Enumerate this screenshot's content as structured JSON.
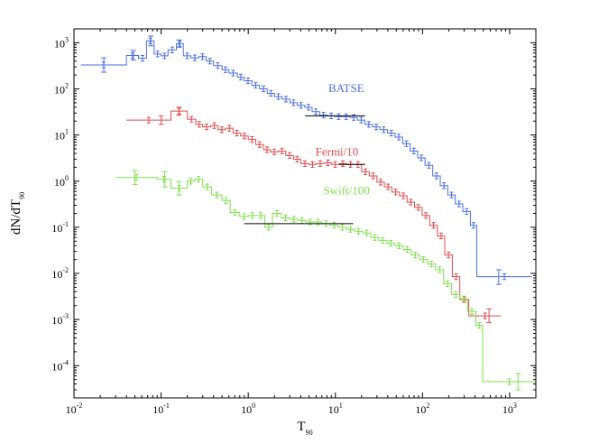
{
  "chart_data": {
    "type": "line",
    "xlabel": "T",
    "xlabel_sub": "90",
    "ylabel": "dN/dT",
    "ylabel_sub": "90",
    "x_scale": "log",
    "y_scale": "log",
    "xlim": [
      0.01,
      2000
    ],
    "ylim": [
      2e-05,
      2000
    ],
    "x_ticks": [
      {
        "base": "10",
        "exp": "-2",
        "value": 0.01
      },
      {
        "base": "10",
        "exp": "-1",
        "value": 0.1
      },
      {
        "base": "10",
        "exp": "0",
        "value": 1
      },
      {
        "base": "10",
        "exp": "1",
        "value": 10
      },
      {
        "base": "10",
        "exp": "2",
        "value": 100
      },
      {
        "base": "10",
        "exp": "3",
        "value": 1000
      }
    ],
    "y_ticks": [
      {
        "base": "10",
        "exp": "3",
        "value": 1000
      },
      {
        "base": "10",
        "exp": "2",
        "value": 100
      },
      {
        "base": "10",
        "exp": "1",
        "value": 10
      },
      {
        "base": "10",
        "exp": "0",
        "value": 1
      },
      {
        "base": "10",
        "exp": "-1",
        "value": 0.1
      },
      {
        "base": "10",
        "exp": "-2",
        "value": 0.01
      },
      {
        "base": "10",
        "exp": "-3",
        "value": 0.001
      },
      {
        "base": "10",
        "exp": "-4",
        "value": 0.0001
      }
    ],
    "grid": false,
    "series": [
      {
        "name": "BATSE",
        "color": "#4a6ee0",
        "label_position": {
          "x": 8.3,
          "y": 85
        },
        "edges": [
          0.012,
          0.04,
          0.055,
          0.068,
          0.083,
          0.1,
          0.12,
          0.15,
          0.18,
          0.22,
          0.27,
          0.33,
          0.4,
          0.5,
          0.6,
          0.75,
          0.9,
          1.1,
          1.35,
          1.65,
          2.0,
          2.45,
          3.0,
          3.65,
          4.45,
          5.4,
          6.6,
          8.1,
          9.9,
          12.0,
          14.7,
          17.9,
          21.9,
          26.7,
          32.5,
          39.7,
          48.4,
          59.1,
          72.0,
          87.9,
          107,
          131,
          160,
          195,
          238,
          290,
          354,
          420,
          1800
        ],
        "values": [
          330,
          530,
          460,
          1100,
          570,
          520,
          700,
          960,
          520,
          470,
          500,
          400,
          320,
          260,
          220,
          180,
          150,
          120,
          100,
          80,
          68,
          60,
          50,
          44,
          40,
          32,
          27,
          26,
          25,
          25,
          24,
          21,
          17,
          15,
          13,
          11,
          9,
          6.5,
          4.5,
          3.2,
          2.2,
          1.3,
          0.8,
          0.5,
          0.32,
          0.22,
          0.11,
          0.0085
        ],
        "error_points": [
          {
            "x": 0.022,
            "y": 330,
            "lo": 230,
            "hi": 470
          },
          {
            "x": 0.048,
            "y": 530,
            "lo": 420,
            "hi": 680
          },
          {
            "x": 0.076,
            "y": 1100,
            "lo": 860,
            "hi": 1400
          },
          {
            "x": 0.16,
            "y": 960,
            "lo": 800,
            "hi": 1150
          },
          {
            "x": 750,
            "y": 0.0085,
            "lo": 0.0058,
            "hi": 0.012
          }
        ]
      },
      {
        "name": "Fermi/10",
        "color": "#e04a4a",
        "label_position": {
          "x": 5.9,
          "y": 3.6
        },
        "edges": [
          0.04,
          0.13,
          0.2,
          0.25,
          0.3,
          0.37,
          0.45,
          0.55,
          0.67,
          0.82,
          1.0,
          1.22,
          1.5,
          1.8,
          2.2,
          2.7,
          3.3,
          4.0,
          5.0,
          6.0,
          7.5,
          9.0,
          11.0,
          13.5,
          16.5,
          20,
          24.5,
          30,
          36.5,
          44.5,
          54.5,
          66.5,
          81,
          99,
          121,
          148,
          180,
          220,
          268,
          340,
          800
        ],
        "values": [
          21,
          33,
          22,
          17,
          15,
          16,
          13,
          14,
          11,
          9.5,
          8,
          6.2,
          4.8,
          4.3,
          4.5,
          3.6,
          3.0,
          2.4,
          2.3,
          2.4,
          2.5,
          2.3,
          2.4,
          2.3,
          2.3,
          1.6,
          1.3,
          0.95,
          0.75,
          0.58,
          0.48,
          0.35,
          0.27,
          0.18,
          0.11,
          0.065,
          0.025,
          0.0085,
          0.0027,
          0.0012
        ],
        "error_points": [
          {
            "x": 0.1,
            "y": 21,
            "lo": 17,
            "hi": 26
          },
          {
            "x": 0.16,
            "y": 33,
            "lo": 27,
            "hi": 40
          },
          {
            "x": 580,
            "y": 0.0012,
            "lo": 0.00085,
            "hi": 0.0017
          }
        ]
      },
      {
        "name": "Swift/100",
        "color": "#7ee04a",
        "label_position": {
          "x": 7.3,
          "y": 0.52
        },
        "edges": [
          0.03,
          0.09,
          0.13,
          0.2,
          0.24,
          0.3,
          0.38,
          0.5,
          0.62,
          0.8,
          1.0,
          1.25,
          1.55,
          1.9,
          2.4,
          3.0,
          3.7,
          4.6,
          5.7,
          7.0,
          8.7,
          10.8,
          13.4,
          16.6,
          20.5,
          25.5,
          31.5,
          39,
          48,
          60,
          74,
          92,
          114,
          141,
          175,
          216,
          268,
          330,
          410,
          490,
          2000
        ],
        "values": [
          1.2,
          1.1,
          0.7,
          1.0,
          1.1,
          0.75,
          0.5,
          0.38,
          0.21,
          0.17,
          0.18,
          0.18,
          0.1,
          0.2,
          0.16,
          0.15,
          0.14,
          0.13,
          0.13,
          0.12,
          0.11,
          0.1,
          0.09,
          0.082,
          0.075,
          0.06,
          0.052,
          0.045,
          0.04,
          0.033,
          0.025,
          0.02,
          0.016,
          0.012,
          0.006,
          0.0035,
          0.0028,
          0.0015,
          0.00075,
          4.5e-05
        ],
        "error_points": [
          {
            "x": 0.05,
            "y": 1.2,
            "lo": 0.85,
            "hi": 1.7
          },
          {
            "x": 0.11,
            "y": 1.1,
            "lo": 0.75,
            "hi": 1.6
          },
          {
            "x": 0.16,
            "y": 0.7,
            "lo": 0.5,
            "hi": 0.98
          },
          {
            "x": 1250,
            "y": 4.5e-05,
            "lo": 3e-05,
            "hi": 6.8e-05
          }
        ]
      },
      {
        "name": "",
        "color": "#000000",
        "segments": [
          {
            "x1": 4.5,
            "x2": 22,
            "y": 26
          },
          {
            "x1": 11,
            "x2": 22,
            "y": 2.3
          },
          {
            "x1": 0.9,
            "x2": 16,
            "y": 0.12
          }
        ]
      }
    ]
  }
}
